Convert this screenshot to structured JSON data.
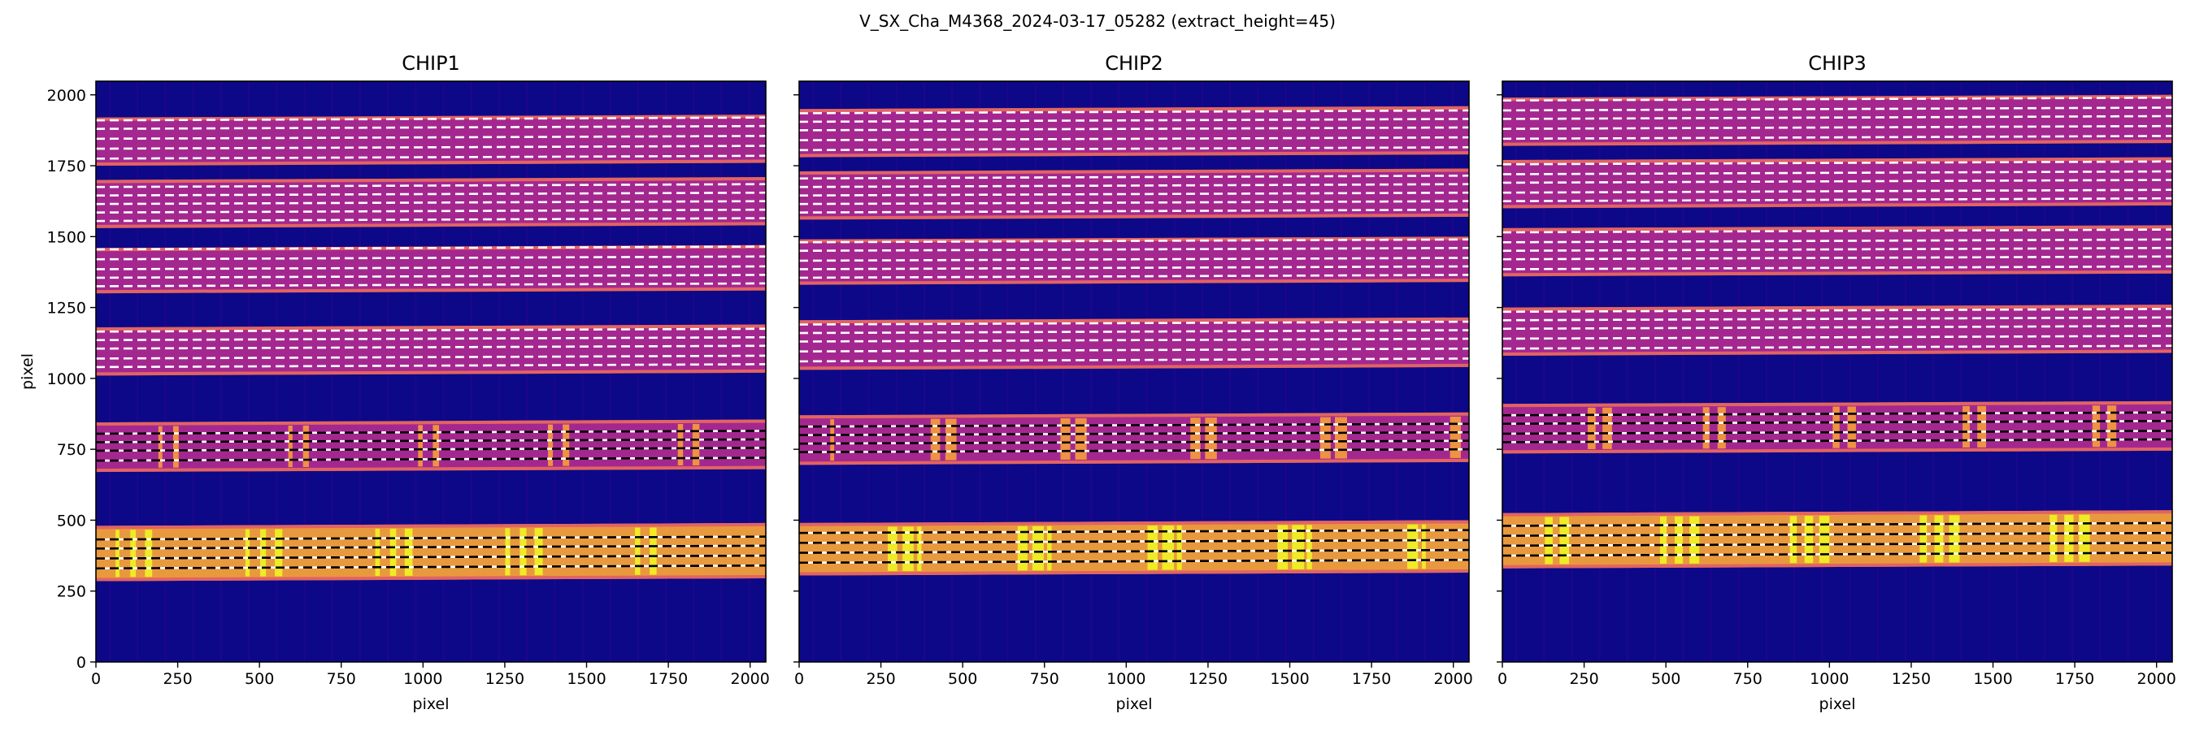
{
  "figure": {
    "suptitle": "V_SX_Cha_M4368_2024-03-17_05282  (extract_height=45)",
    "colormap": "plasma",
    "colors": {
      "background": "#0d0887",
      "interorder": "#3d049b",
      "order_mid": "#b12a90",
      "order_edge": "#e16462",
      "order_hot": "#fca636",
      "order_saturated": "#f0f921",
      "trace_line": "#ffffff",
      "trace_line_alt": "#000000"
    }
  },
  "chart_data": [
    {
      "type": "heatmap",
      "title": "CHIP1",
      "xlabel": "pixel",
      "ylabel": "pixel",
      "xlim": [
        0,
        2048
      ],
      "ylim": [
        0,
        2048
      ],
      "xticks": [
        0,
        250,
        500,
        750,
        1000,
        1250,
        1500,
        1750,
        2000
      ],
      "yticks": [
        0,
        250,
        500,
        750,
        1000,
        1250,
        1500,
        1750,
        2000
      ],
      "orders": [
        {
          "y_low": 285,
          "y_high": 480,
          "level": "saturated",
          "traces": [
            330,
            365,
            400,
            432
          ]
        },
        {
          "y_low": 670,
          "y_high": 845,
          "level": "hot",
          "traces": [
            710,
            745,
            775,
            805
          ]
        },
        {
          "y_low": 1010,
          "y_high": 1180,
          "level": "mid",
          "traces": [
            1040,
            1070,
            1105,
            1135,
            1165
          ]
        },
        {
          "y_low": 1300,
          "y_high": 1460,
          "level": "mid",
          "traces": [
            1325,
            1355,
            1385,
            1420,
            1455
          ]
        },
        {
          "y_low": 1530,
          "y_high": 1700,
          "level": "mid",
          "traces": [
            1555,
            1585,
            1615,
            1645,
            1675
          ]
        },
        {
          "y_low": 1750,
          "y_high": 1920,
          "level": "mid",
          "traces": [
            1775,
            1810,
            1845,
            1880,
            1910
          ]
        }
      ]
    },
    {
      "type": "heatmap",
      "title": "CHIP2",
      "xlabel": "pixel",
      "ylabel": "",
      "xlim": [
        0,
        2048
      ],
      "ylim": [
        0,
        2048
      ],
      "xticks": [
        0,
        250,
        500,
        750,
        1000,
        1250,
        1500,
        1750,
        2000
      ],
      "yticks": [],
      "orders": [
        {
          "y_low": 305,
          "y_high": 490,
          "level": "saturated",
          "traces": [
            350,
            385,
            420,
            455
          ]
        },
        {
          "y_low": 695,
          "y_high": 870,
          "level": "hot",
          "traces": [
            740,
            770,
            800,
            830
          ]
        },
        {
          "y_low": 1030,
          "y_high": 1205,
          "level": "mid",
          "traces": [
            1060,
            1095,
            1130,
            1160,
            1190
          ]
        },
        {
          "y_low": 1330,
          "y_high": 1490,
          "level": "mid",
          "traces": [
            1355,
            1385,
            1415,
            1450,
            1480
          ]
        },
        {
          "y_low": 1560,
          "y_high": 1730,
          "level": "mid",
          "traces": [
            1585,
            1615,
            1645,
            1675,
            1705
          ]
        },
        {
          "y_low": 1780,
          "y_high": 1950,
          "level": "mid",
          "traces": [
            1805,
            1840,
            1875,
            1905,
            1935
          ]
        }
      ]
    },
    {
      "type": "heatmap",
      "title": "CHIP3",
      "xlabel": "pixel",
      "ylabel": "",
      "xlim": [
        0,
        2048
      ],
      "ylim": [
        0,
        2048
      ],
      "xticks": [
        0,
        250,
        500,
        750,
        1000,
        1250,
        1500,
        1750,
        2000
      ],
      "yticks": [],
      "orders": [
        {
          "y_low": 330,
          "y_high": 525,
          "level": "saturated",
          "traces": [
            375,
            410,
            445,
            480
          ]
        },
        {
          "y_low": 735,
          "y_high": 910,
          "level": "hot",
          "traces": [
            775,
            805,
            840,
            870
          ]
        },
        {
          "y_low": 1080,
          "y_high": 1250,
          "level": "mid",
          "traces": [
            1105,
            1140,
            1175,
            1205,
            1235
          ]
        },
        {
          "y_low": 1360,
          "y_high": 1530,
          "level": "mid",
          "traces": [
            1385,
            1420,
            1450,
            1480,
            1515
          ]
        },
        {
          "y_low": 1600,
          "y_high": 1770,
          "level": "mid",
          "traces": [
            1625,
            1655,
            1690,
            1720,
            1755
          ]
        },
        {
          "y_low": 1820,
          "y_high": 1990,
          "level": "mid",
          "traces": [
            1845,
            1880,
            1915,
            1945,
            1980
          ]
        }
      ]
    }
  ]
}
